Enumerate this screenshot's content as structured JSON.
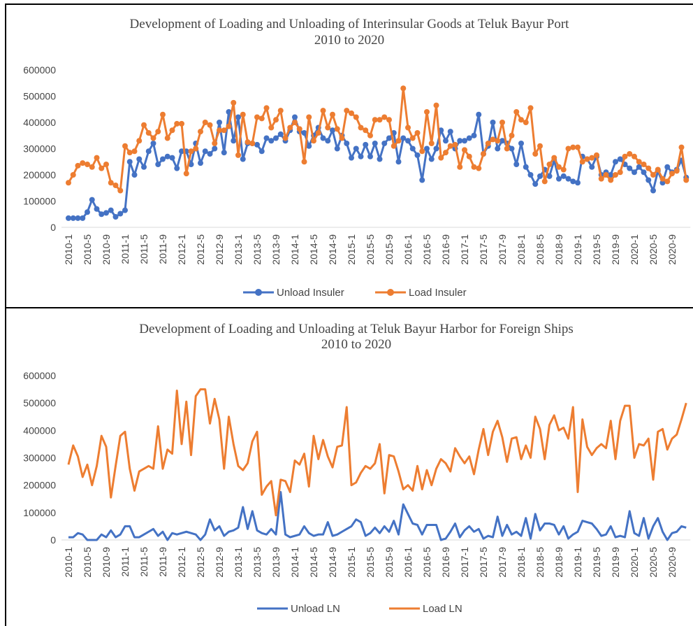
{
  "chart_data": [
    {
      "type": "line",
      "title": "Development of Loading and Unloading of Interinsular Goods at Teluk Bayur Port",
      "subtitle": "2010 to 2020",
      "markers": true,
      "categories": [
        "2010-1",
        null,
        null,
        null,
        "2010-5",
        null,
        null,
        null,
        "2010-9",
        null,
        null,
        null,
        "2011-1",
        null,
        null,
        null,
        "2011-5",
        null,
        null,
        null,
        "2011-9",
        null,
        null,
        null,
        "2012-1",
        null,
        null,
        null,
        "2012-5",
        null,
        null,
        null,
        "2012-9",
        null,
        null,
        null,
        "2013-1",
        null,
        null,
        null,
        "2013-5",
        null,
        null,
        null,
        "2013-9",
        null,
        null,
        null,
        "2014-1",
        null,
        null,
        null,
        "2014-5",
        null,
        null,
        null,
        "2014-9",
        null,
        null,
        null,
        "2015-1",
        null,
        null,
        null,
        "2015-5",
        null,
        null,
        null,
        "2015-9",
        null,
        null,
        null,
        "2016-1",
        null,
        null,
        null,
        "2016-5",
        null,
        null,
        null,
        "2016-9",
        null,
        null,
        null,
        "2017-1",
        null,
        null,
        null,
        "2017-5",
        null,
        null,
        null,
        "2017-9",
        null,
        null,
        null,
        "2018-1",
        null,
        null,
        null,
        "2018-5",
        null,
        null,
        null,
        "2018-9",
        null,
        null,
        null,
        "2019-1",
        null,
        null,
        null,
        "2019-5",
        null,
        null,
        null,
        "2019-9",
        null,
        null,
        null,
        "2020-1",
        null,
        null,
        null,
        "2020-5",
        null,
        null,
        null,
        "2020-9",
        null,
        null,
        null
      ],
      "ylim": [
        0,
        600000
      ],
      "yticks": [
        0,
        100000,
        200000,
        300000,
        400000,
        500000,
        600000
      ],
      "series": [
        {
          "name": "Unload Insuler",
          "color": "#4472c4",
          "values": [
            35000,
            35000,
            35000,
            35000,
            58000,
            105000,
            70000,
            50000,
            55000,
            65000,
            40000,
            52000,
            65000,
            250000,
            200000,
            260000,
            230000,
            290000,
            320000,
            240000,
            260000,
            270000,
            265000,
            225000,
            290000,
            290000,
            240000,
            320000,
            245000,
            290000,
            280000,
            300000,
            400000,
            285000,
            440000,
            330000,
            420000,
            260000,
            320000,
            320000,
            315000,
            290000,
            340000,
            330000,
            340000,
            355000,
            330000,
            370000,
            420000,
            365000,
            360000,
            310000,
            350000,
            380000,
            340000,
            330000,
            370000,
            300000,
            350000,
            320000,
            265000,
            300000,
            270000,
            315000,
            270000,
            320000,
            260000,
            320000,
            340000,
            360000,
            250000,
            340000,
            330000,
            300000,
            275000,
            180000,
            300000,
            260000,
            300000,
            370000,
            330000,
            365000,
            300000,
            330000,
            330000,
            340000,
            350000,
            430000,
            280000,
            310000,
            400000,
            300000,
            330000,
            320000,
            300000,
            240000,
            320000,
            230000,
            200000,
            165000,
            195000,
            220000,
            195000,
            255000,
            185000,
            195000,
            185000,
            175000,
            170000,
            270000,
            260000,
            230000,
            270000,
            200000,
            210000,
            200000,
            250000,
            260000,
            240000,
            225000,
            210000,
            230000,
            210000,
            180000,
            140000,
            215000,
            170000,
            230000,
            210000,
            220000,
            255000,
            190000
          ]
        },
        {
          "name": "Load Insuler",
          "color": "#ed7d31",
          "values": [
            170000,
            200000,
            235000,
            245000,
            240000,
            230000,
            265000,
            225000,
            240000,
            170000,
            160000,
            140000,
            310000,
            285000,
            290000,
            330000,
            390000,
            360000,
            340000,
            365000,
            430000,
            340000,
            370000,
            395000,
            395000,
            205000,
            290000,
            300000,
            365000,
            400000,
            390000,
            320000,
            370000,
            370000,
            385000,
            475000,
            275000,
            430000,
            325000,
            320000,
            420000,
            415000,
            455000,
            380000,
            410000,
            445000,
            340000,
            380000,
            400000,
            375000,
            250000,
            420000,
            330000,
            360000,
            445000,
            380000,
            430000,
            375000,
            340000,
            445000,
            435000,
            420000,
            380000,
            370000,
            350000,
            410000,
            410000,
            420000,
            410000,
            310000,
            330000,
            530000,
            380000,
            340000,
            360000,
            290000,
            440000,
            320000,
            465000,
            265000,
            285000,
            310000,
            315000,
            230000,
            295000,
            270000,
            230000,
            225000,
            280000,
            320000,
            335000,
            330000,
            400000,
            300000,
            350000,
            440000,
            410000,
            400000,
            455000,
            280000,
            310000,
            175000,
            240000,
            265000,
            230000,
            220000,
            300000,
            305000,
            305000,
            250000,
            260000,
            265000,
            275000,
            185000,
            200000,
            180000,
            200000,
            210000,
            270000,
            280000,
            270000,
            250000,
            240000,
            225000,
            200000,
            220000,
            185000,
            175000,
            205000,
            215000,
            305000,
            180000
          ]
        }
      ]
    },
    {
      "type": "line",
      "title": "Development of Loading and Unloading at Teluk Bayur Harbor for Foreign Ships",
      "subtitle": "2010 to 2020",
      "markers": false,
      "categories": [
        "2010-1",
        null,
        null,
        null,
        "2010-5",
        null,
        null,
        null,
        "2010-9",
        null,
        null,
        null,
        "2011-1",
        null,
        null,
        null,
        "2011-5",
        null,
        null,
        null,
        "2011-9",
        null,
        null,
        null,
        "2012-1",
        null,
        null,
        null,
        "2012-5",
        null,
        null,
        null,
        "2012-9",
        null,
        null,
        null,
        "2013-1",
        null,
        null,
        null,
        "2013-5",
        null,
        null,
        null,
        "2013-9",
        null,
        null,
        null,
        "2014-1",
        null,
        null,
        null,
        "2014-5",
        null,
        null,
        null,
        "2014-9",
        null,
        null,
        null,
        "2015-1",
        null,
        null,
        null,
        "2015-5",
        null,
        null,
        null,
        "2015-9",
        null,
        null,
        null,
        "2016-1",
        null,
        null,
        null,
        "2016-5",
        null,
        null,
        null,
        "2016-9",
        null,
        null,
        null,
        "2017-1",
        null,
        null,
        null,
        "2017-5",
        null,
        null,
        null,
        "2017-9",
        null,
        null,
        null,
        "2018-1",
        null,
        null,
        null,
        "2018-5",
        null,
        null,
        null,
        "2018-9",
        null,
        null,
        null,
        "2019-1",
        null,
        null,
        null,
        "2019-5",
        null,
        null,
        null,
        "2019-9",
        null,
        null,
        null,
        "2020-1",
        null,
        null,
        null,
        "2020-5",
        null,
        null,
        null,
        "2020-9",
        null,
        null,
        null
      ],
      "ylim": [
        0,
        600000
      ],
      "yticks": [
        0,
        100000,
        200000,
        300000,
        400000,
        500000,
        600000
      ],
      "series": [
        {
          "name": "Unload LN",
          "color": "#4472c4",
          "values": [
            10000,
            10000,
            25000,
            20000,
            0,
            0,
            0,
            20000,
            10000,
            35000,
            10000,
            20000,
            50000,
            50000,
            10000,
            10000,
            20000,
            30000,
            40000,
            15000,
            30000,
            0,
            25000,
            20000,
            25000,
            30000,
            25000,
            20000,
            0,
            20000,
            75000,
            35000,
            50000,
            15000,
            30000,
            35000,
            45000,
            120000,
            40000,
            105000,
            35000,
            25000,
            20000,
            40000,
            20000,
            175000,
            20000,
            10000,
            15000,
            20000,
            50000,
            25000,
            15000,
            20000,
            20000,
            65000,
            15000,
            20000,
            30000,
            40000,
            50000,
            75000,
            65000,
            15000,
            25000,
            45000,
            25000,
            50000,
            30000,
            70000,
            20000,
            130000,
            95000,
            60000,
            55000,
            20000,
            55000,
            55000,
            55000,
            0,
            5000,
            30000,
            60000,
            10000,
            35000,
            50000,
            30000,
            40000,
            5000,
            15000,
            10000,
            85000,
            15000,
            55000,
            20000,
            30000,
            15000,
            80000,
            5000,
            95000,
            35000,
            60000,
            60000,
            55000,
            20000,
            50000,
            5000,
            20000,
            30000,
            70000,
            65000,
            60000,
            40000,
            15000,
            20000,
            50000,
            10000,
            15000,
            10000,
            105000,
            25000,
            15000,
            80000,
            5000,
            50000,
            80000,
            30000,
            0,
            25000,
            30000,
            50000,
            45000
          ]
        },
        {
          "name": "Load LN",
          "color": "#ed7d31",
          "values": [
            275000,
            345000,
            305000,
            230000,
            275000,
            200000,
            270000,
            380000,
            340000,
            155000,
            270000,
            380000,
            395000,
            260000,
            180000,
            250000,
            260000,
            270000,
            260000,
            415000,
            260000,
            330000,
            315000,
            545000,
            350000,
            505000,
            310000,
            525000,
            550000,
            550000,
            425000,
            515000,
            440000,
            260000,
            450000,
            350000,
            270000,
            255000,
            280000,
            360000,
            395000,
            165000,
            195000,
            215000,
            90000,
            220000,
            215000,
            175000,
            290000,
            275000,
            315000,
            195000,
            380000,
            295000,
            365000,
            305000,
            265000,
            340000,
            345000,
            485000,
            200000,
            210000,
            245000,
            270000,
            260000,
            280000,
            350000,
            170000,
            310000,
            305000,
            250000,
            185000,
            200000,
            180000,
            270000,
            185000,
            255000,
            200000,
            260000,
            295000,
            280000,
            250000,
            335000,
            305000,
            280000,
            305000,
            240000,
            330000,
            405000,
            310000,
            395000,
            435000,
            375000,
            285000,
            370000,
            375000,
            295000,
            345000,
            300000,
            450000,
            405000,
            295000,
            420000,
            455000,
            400000,
            410000,
            370000,
            485000,
            175000,
            440000,
            340000,
            310000,
            335000,
            350000,
            335000,
            435000,
            295000,
            435000,
            490000,
            490000,
            300000,
            350000,
            345000,
            370000,
            220000,
            395000,
            405000,
            330000,
            370000,
            385000,
            440000,
            500000
          ]
        }
      ]
    }
  ]
}
